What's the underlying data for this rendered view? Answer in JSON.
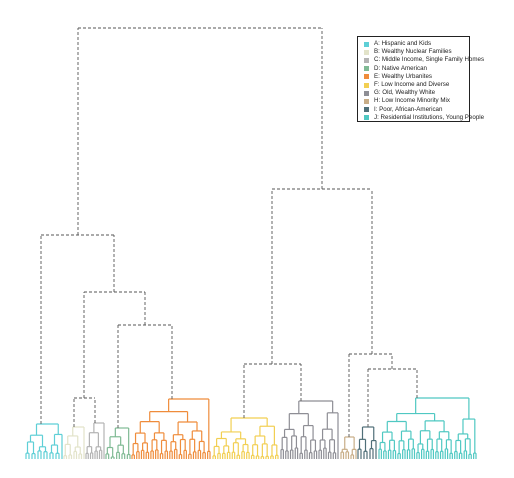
{
  "legend": {
    "items": [
      {
        "label": "A: Hispanic and Kids",
        "color": "#5ecfd6"
      },
      {
        "label": "B: Wealthy Nuclear Families",
        "color": "#e2e3c9"
      },
      {
        "label": "C: Middle Income, Single Family Homes",
        "color": "#b3b3b3"
      },
      {
        "label": "D: Native American",
        "color": "#7fba94"
      },
      {
        "label": "E: Wealthy Urbanites",
        "color": "#ef8c3b"
      },
      {
        "label": "F: Low Income and Diverse",
        "color": "#f2cf52"
      },
      {
        "label": "G: Old, Wealthy White",
        "color": "#8e8e95"
      },
      {
        "label": "H: Low Income Minority Mix",
        "color": "#c8ad87"
      },
      {
        "label": "I: Poor, African-American",
        "color": "#4f6f78"
      },
      {
        "label": "J: Residential Institutions, Young People",
        "color": "#4fc8c2"
      }
    ]
  },
  "clusters": [
    {
      "id": "A",
      "leaves": 13,
      "color": "#5ecfd6"
    },
    {
      "id": "B",
      "leaves": 9,
      "color": "#e2e3c9"
    },
    {
      "id": "C",
      "leaves": 9,
      "color": "#b3b3b3"
    },
    {
      "id": "D",
      "leaves": 10,
      "color": "#7fba94"
    },
    {
      "id": "E",
      "leaves": 34,
      "color": "#ef8c3b"
    },
    {
      "id": "F",
      "leaves": 28,
      "color": "#f2cf52"
    },
    {
      "id": "G",
      "leaves": 25,
      "color": "#8e8e95"
    },
    {
      "id": "H",
      "leaves": 7,
      "color": "#c8ad87"
    },
    {
      "id": "I",
      "leaves": 7,
      "color": "#4f6f78"
    },
    {
      "id": "J",
      "leaves": 42,
      "color": "#4fc8c2"
    }
  ],
  "merge_line_color": "#555555"
}
